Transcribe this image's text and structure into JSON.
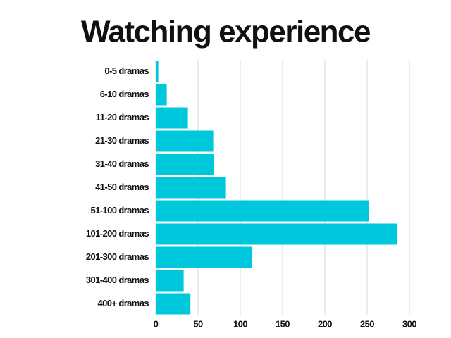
{
  "chart_data": {
    "type": "barh",
    "title": "Watching experience",
    "categories": [
      "0-5 dramas",
      "6-10 dramas",
      "11-20 dramas",
      "21-30 dramas",
      "31-40 dramas",
      "41-50 dramas",
      "51-100 dramas",
      "101-200 dramas",
      "201-300 dramas",
      "301-400 dramas",
      "400+ dramas"
    ],
    "values": [
      3,
      13,
      38,
      68,
      69,
      83,
      252,
      285,
      114,
      33,
      41
    ],
    "color": "#00c8dc",
    "xlim": [
      0,
      300
    ],
    "xticks": [
      0,
      50,
      100,
      150,
      200,
      250,
      300
    ],
    "grid": true
  }
}
